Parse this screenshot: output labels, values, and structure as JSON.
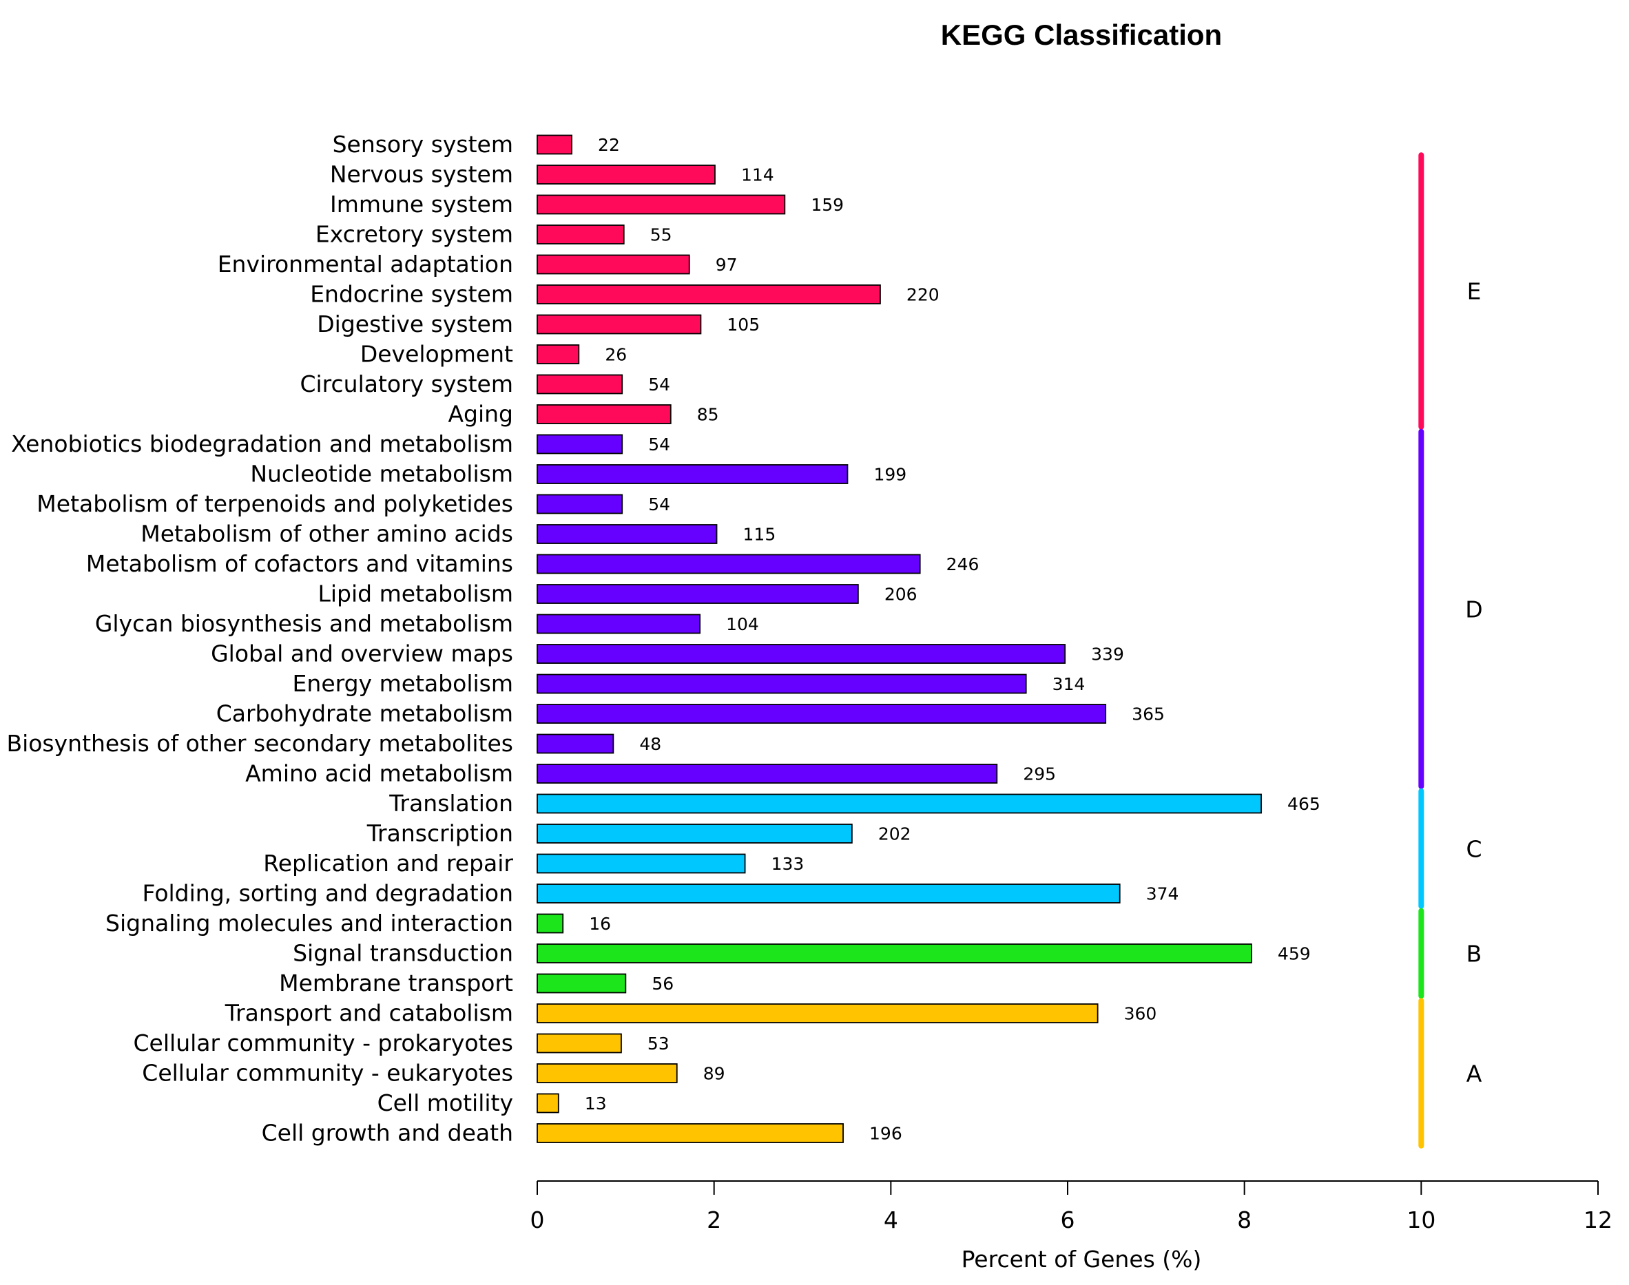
{
  "chart_data": {
    "type": "bar",
    "orientation": "horizontal",
    "title": "KEGG Classification",
    "xlabel": "Percent of Genes (%)",
    "ylabel": "",
    "xlim": [
      0,
      12
    ],
    "xticks": [
      0,
      2,
      4,
      6,
      8,
      10,
      12
    ],
    "grid": false,
    "colors": {
      "A": "#FFC300",
      "B": "#1CE51C",
      "C": "#00C8FF",
      "D": "#6600FF",
      "E": "#FF0A5A"
    },
    "categories": [
      {
        "label": "Sensory system",
        "count": 22,
        "percent": 0.39,
        "group": "E"
      },
      {
        "label": "Nervous system",
        "count": 114,
        "percent": 2.01,
        "group": "E"
      },
      {
        "label": "Immune system",
        "count": 159,
        "percent": 2.8,
        "group": "E"
      },
      {
        "label": "Excretory system",
        "count": 55,
        "percent": 0.98,
        "group": "E"
      },
      {
        "label": "Environmental adaptation",
        "count": 97,
        "percent": 1.72,
        "group": "E"
      },
      {
        "label": "Endocrine system",
        "count": 220,
        "percent": 3.88,
        "group": "E"
      },
      {
        "label": "Digestive system",
        "count": 105,
        "percent": 1.85,
        "group": "E"
      },
      {
        "label": "Development",
        "count": 26,
        "percent": 0.47,
        "group": "E"
      },
      {
        "label": "Circulatory system",
        "count": 54,
        "percent": 0.96,
        "group": "E"
      },
      {
        "label": "Aging",
        "count": 85,
        "percent": 1.51,
        "group": "E"
      },
      {
        "label": "Xenobiotics biodegradation and metabolism",
        "count": 54,
        "percent": 0.96,
        "group": "D"
      },
      {
        "label": "Nucleotide metabolism",
        "count": 199,
        "percent": 3.51,
        "group": "D"
      },
      {
        "label": "Metabolism of terpenoids and polyketides",
        "count": 54,
        "percent": 0.96,
        "group": "D"
      },
      {
        "label": "Metabolism of other amino acids",
        "count": 115,
        "percent": 2.03,
        "group": "D"
      },
      {
        "label": "Metabolism of cofactors and vitamins",
        "count": 246,
        "percent": 4.33,
        "group": "D"
      },
      {
        "label": "Lipid metabolism",
        "count": 206,
        "percent": 3.63,
        "group": "D"
      },
      {
        "label": "Glycan biosynthesis and metabolism",
        "count": 104,
        "percent": 1.84,
        "group": "D"
      },
      {
        "label": "Global and overview maps",
        "count": 339,
        "percent": 5.97,
        "group": "D"
      },
      {
        "label": "Energy metabolism",
        "count": 314,
        "percent": 5.53,
        "group": "D"
      },
      {
        "label": "Carbohydrate metabolism",
        "count": 365,
        "percent": 6.43,
        "group": "D"
      },
      {
        "label": "Biosynthesis of other secondary metabolites",
        "count": 48,
        "percent": 0.86,
        "group": "D"
      },
      {
        "label": "Amino acid metabolism",
        "count": 295,
        "percent": 5.2,
        "group": "D"
      },
      {
        "label": "Translation",
        "count": 465,
        "percent": 8.19,
        "group": "C"
      },
      {
        "label": "Transcription",
        "count": 202,
        "percent": 3.56,
        "group": "C"
      },
      {
        "label": "Replication and repair",
        "count": 133,
        "percent": 2.35,
        "group": "C"
      },
      {
        "label": "Folding, sorting and degradation",
        "count": 374,
        "percent": 6.59,
        "group": "C"
      },
      {
        "label": "Signaling molecules and interaction",
        "count": 16,
        "percent": 0.29,
        "group": "B"
      },
      {
        "label": "Signal transduction",
        "count": 459,
        "percent": 8.08,
        "group": "B"
      },
      {
        "label": "Membrane transport",
        "count": 56,
        "percent": 1.0,
        "group": "B"
      },
      {
        "label": "Transport and catabolism",
        "count": 360,
        "percent": 6.34,
        "group": "A"
      },
      {
        "label": "Cellular community - prokaryotes",
        "count": 53,
        "percent": 0.95,
        "group": "A"
      },
      {
        "label": "Cellular community - eukaryotes",
        "count": 89,
        "percent": 1.58,
        "group": "A"
      },
      {
        "label": "Cell motility",
        "count": 13,
        "percent": 0.24,
        "group": "A"
      },
      {
        "label": "Cell growth and death",
        "count": 196,
        "percent": 3.46,
        "group": "A"
      }
    ],
    "groups": [
      {
        "label": "E",
        "first": 0,
        "last": 9
      },
      {
        "label": "D",
        "first": 10,
        "last": 21
      },
      {
        "label": "C",
        "first": 22,
        "last": 25
      },
      {
        "label": "B",
        "first": 26,
        "last": 28
      },
      {
        "label": "A",
        "first": 29,
        "last": 33
      }
    ]
  }
}
